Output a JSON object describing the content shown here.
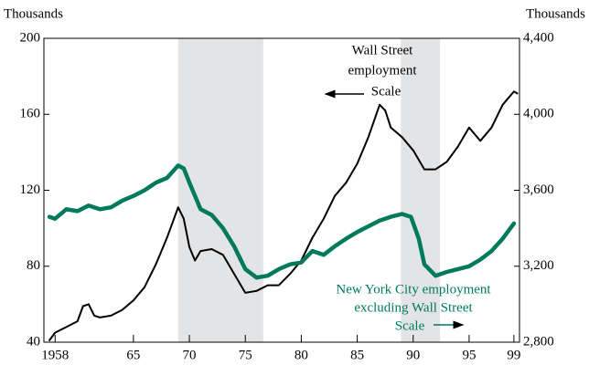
{
  "chart_data": {
    "type": "line",
    "y_axis_label": "Thousands",
    "y2_axis_label": "Thousands",
    "xlim": [
      1957,
      1999.5
    ],
    "xticks": [
      1958,
      {
        "value": 1965,
        "label": "65"
      },
      {
        "value": 1970,
        "label": "70"
      },
      {
        "value": 1975,
        "label": "75"
      },
      {
        "value": 1980,
        "label": "80"
      },
      {
        "value": 1985,
        "label": "85"
      },
      {
        "value": 1990,
        "label": "90"
      },
      {
        "value": 1995,
        "label": "95"
      },
      {
        "value": 1999,
        "label": "99"
      }
    ],
    "ylim": [
      40,
      200
    ],
    "yticks": [
      40,
      80,
      120,
      160,
      200
    ],
    "y2lim": [
      2800,
      4400
    ],
    "y2ticks": [
      {
        "value": 2800,
        "label": "2,800"
      },
      {
        "value": 3200,
        "label": "3,200"
      },
      {
        "value": 3600,
        "label": "3,600"
      },
      {
        "value": 4000,
        "label": "4,000"
      },
      {
        "value": 4400,
        "label": "4,400"
      }
    ],
    "shaded_periods": [
      [
        1969,
        1976.6
      ],
      [
        1988.9,
        1992.4
      ]
    ],
    "shade_color": "#e3e4e6",
    "series": [
      {
        "name": "Wall Street employment",
        "color": "#000000",
        "axis": "y",
        "x": [
          1957.5,
          1958,
          1959,
          1960,
          1960.5,
          1961,
          1961.5,
          1962,
          1963,
          1964,
          1965,
          1966,
          1967,
          1968,
          1969,
          1969.5,
          1970,
          1970.5,
          1971,
          1972,
          1973,
          1974,
          1975,
          1976,
          1977,
          1978,
          1979,
          1980,
          1981,
          1982,
          1983,
          1984,
          1985,
          1986,
          1987,
          1987.5,
          1988,
          1989,
          1990,
          1991,
          1992,
          1993,
          1994,
          1995,
          1996,
          1997,
          1998,
          1999,
          1999.3
        ],
        "values": [
          41,
          45,
          48,
          51,
          59,
          60,
          54,
          53,
          54,
          57,
          62,
          69,
          81,
          95,
          111,
          105,
          90,
          83,
          88,
          89,
          86,
          76,
          66,
          67,
          70,
          70,
          76,
          83,
          95,
          105,
          117,
          124,
          134,
          148,
          165,
          162,
          153,
          148,
          141,
          131,
          131,
          135,
          143,
          153,
          146,
          153,
          165,
          172,
          171
        ]
      },
      {
        "name": "New York City employment excluding Wall Street",
        "color": "#007a5c",
        "axis": "y2",
        "x": [
          1957.5,
          1958,
          1959,
          1960,
          1961,
          1962,
          1963,
          1964,
          1965,
          1966,
          1967,
          1968,
          1969,
          1969.5,
          1970,
          1971,
          1972,
          1973,
          1974,
          1975,
          1976,
          1977,
          1978,
          1979,
          1980,
          1981,
          1982,
          1983,
          1984,
          1985,
          1986,
          1987,
          1988,
          1989,
          1989.8,
          1990.5,
          1991,
          1992,
          1993,
          1994,
          1995,
          1996,
          1997,
          1998,
          1999
        ],
        "values": [
          3460,
          3450,
          3500,
          3490,
          3520,
          3500,
          3510,
          3545,
          3570,
          3600,
          3640,
          3665,
          3730,
          3715,
          3640,
          3500,
          3470,
          3400,
          3305,
          3185,
          3140,
          3150,
          3185,
          3210,
          3220,
          3280,
          3260,
          3305,
          3345,
          3380,
          3410,
          3440,
          3460,
          3475,
          3460,
          3345,
          3210,
          3150,
          3170,
          3185,
          3200,
          3235,
          3280,
          3345,
          3425
        ]
      }
    ],
    "annotations": [
      "Wall Street",
      "employment",
      "Scale",
      "New York City employment",
      "excluding Wall Street",
      "Scale"
    ]
  }
}
